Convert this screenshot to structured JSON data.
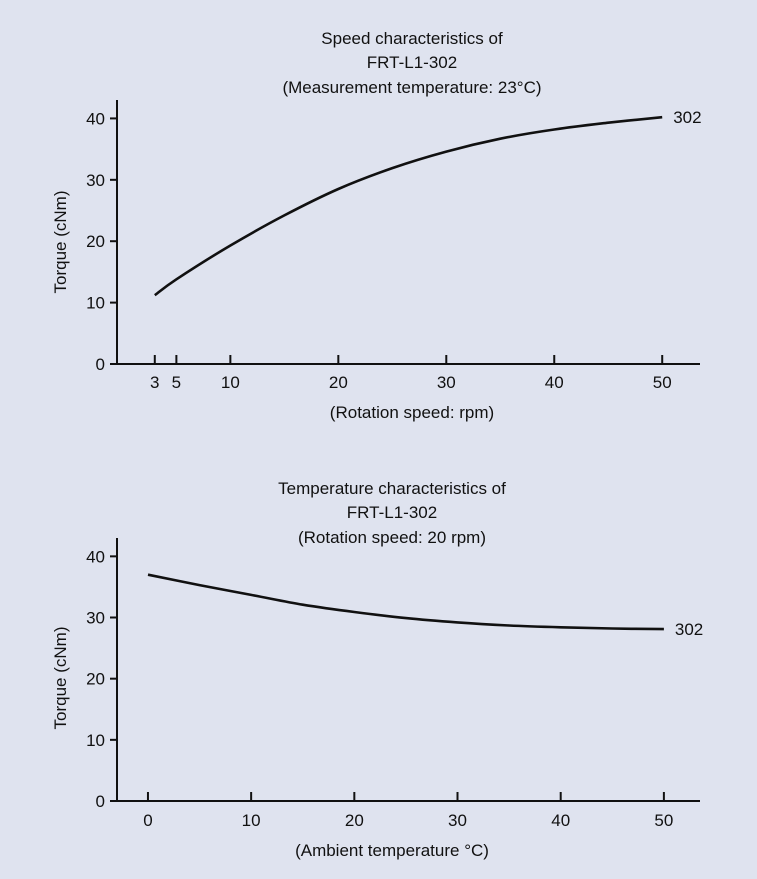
{
  "charts": [
    {
      "title_lines": [
        "Speed characteristics of",
        "FRT-L1-302",
        "(Measurement temperature: 23°C)"
      ],
      "xlabel": "(Rotation speed: rpm)",
      "ylabel": "Torque (cNm)"
    },
    {
      "title_lines": [
        "Temperature characteristics of",
        "FRT-L1-302",
        "(Rotation speed: 20 rpm)"
      ],
      "xlabel": "(Ambient temperature °C)",
      "ylabel": "Torque (cNm)"
    }
  ],
  "chart_data": [
    {
      "type": "line",
      "title": "Speed characteristics of FRT-L1-302 (Measurement temperature: 23°C)",
      "xlabel": "(Rotation speed: rpm)",
      "ylabel": "Torque (cNm)",
      "xticks": [
        3,
        5,
        10,
        20,
        30,
        40,
        50
      ],
      "yticks": [
        0,
        10,
        20,
        30,
        40
      ],
      "xlim": [
        -0.5,
        53.5
      ],
      "ylim": [
        0,
        43
      ],
      "grid": false,
      "series": [
        {
          "name": "302",
          "x": [
            3,
            5,
            10,
            15,
            20,
            25,
            30,
            35,
            40,
            45,
            50
          ],
          "y": [
            11.2,
            13.8,
            19.3,
            24.2,
            28.5,
            31.9,
            34.6,
            36.7,
            38.2,
            39.3,
            40.2
          ]
        }
      ]
    },
    {
      "type": "line",
      "title": "Temperature characteristics of FRT-L1-302 (Rotation speed: 20 rpm)",
      "xlabel": "(Ambient temperature °C)",
      "ylabel": "Torque (cNm)",
      "xticks": [
        0,
        10,
        20,
        30,
        40,
        50
      ],
      "yticks": [
        0,
        10,
        20,
        30,
        40
      ],
      "xlim": [
        -3,
        53.5
      ],
      "ylim": [
        0,
        43
      ],
      "grid": false,
      "series": [
        {
          "name": "302",
          "x": [
            0,
            5,
            10,
            15,
            20,
            25,
            30,
            35,
            40,
            45,
            50
          ],
          "y": [
            37.0,
            35.3,
            33.7,
            32.1,
            30.9,
            29.9,
            29.2,
            28.7,
            28.4,
            28.2,
            28.1
          ]
        }
      ]
    }
  ]
}
